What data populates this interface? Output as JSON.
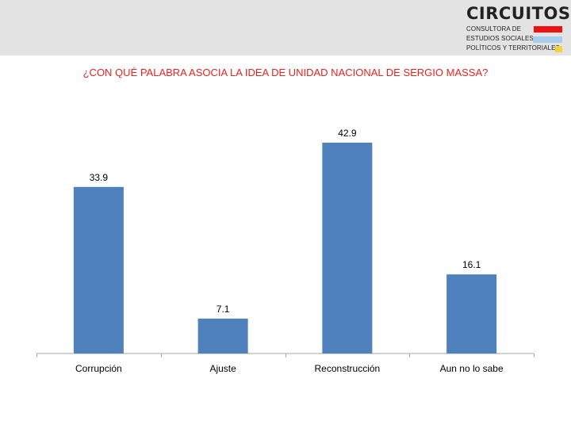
{
  "logo": {
    "word": "CIRCUITOS",
    "line1": "CONSULTORA DE",
    "line2": "ESTUDIOS SOCIALES,",
    "line3": "POLÍTICOS Y TERRITORIALES",
    "colors": [
      "#ee1111",
      "#a9cdef",
      "#f5d23a"
    ]
  },
  "chart_data": {
    "type": "bar",
    "title": "¿CON QUÉ PALABRA ASOCIA LA IDEA DE UNIDAD NACIONAL DE SERGIO MASSA?",
    "categories": [
      "Corrupción",
      "Ajuste",
      "Reconstrucción",
      "Aun no lo sabe"
    ],
    "values": [
      33.9,
      7.1,
      42.9,
      16.1
    ],
    "value_labels": [
      "33.9",
      "7.1",
      "42.9",
      "16.1"
    ],
    "ylim": [
      0,
      50
    ],
    "grid": false,
    "legend": "none",
    "bar_color": "#4f81bd",
    "title_color": "#e8231f"
  }
}
